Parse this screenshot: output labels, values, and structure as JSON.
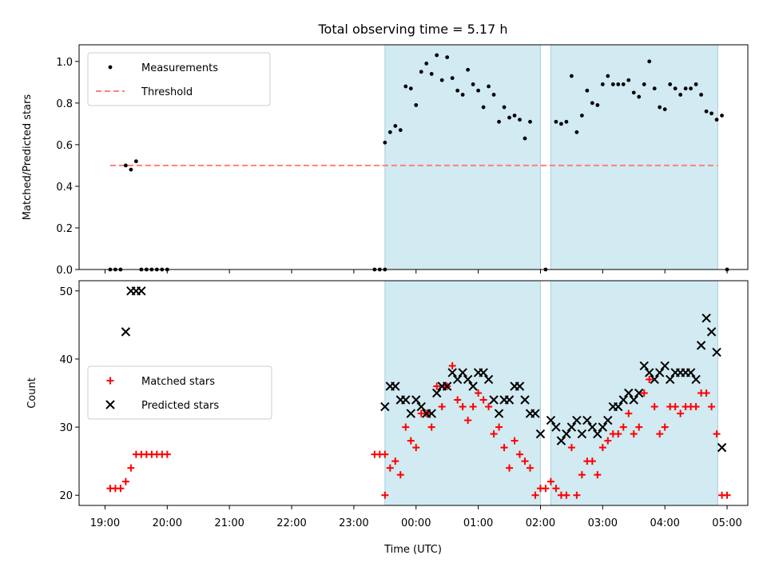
{
  "figure": {
    "title": "Total observing time = 5.17 h",
    "xlabel": "Time (UTC)"
  },
  "colors": {
    "shade": "#add8e6",
    "measurement": "#000000",
    "threshold": "#ff7f7f",
    "matched": "#ff0000",
    "predicted": "#000000"
  },
  "chart_data": [
    {
      "type": "scatter",
      "title": "Total observing time = 5.17 h",
      "ylabel": "Matched/Predicted stars",
      "xlabel": "",
      "xlim": [
        "18:35",
        "05:20"
      ],
      "ylim": [
        0,
        1.08
      ],
      "yticks": [
        "0.0",
        "0.2",
        "0.4",
        "0.6",
        "0.8",
        "1.0"
      ],
      "legend_position": "upper-left",
      "legend": [
        "Measurements",
        "Threshold"
      ],
      "shaded_intervals": [
        [
          "23:30",
          "02:00"
        ],
        [
          "02:10",
          "04:51"
        ]
      ],
      "threshold": {
        "name": "Threshold",
        "value": 0.5,
        "x_range": [
          "19:05",
          "04:51"
        ]
      },
      "series": [
        {
          "name": "Measurements",
          "points": [
            [
              "19:05",
              0
            ],
            [
              "19:10",
              0
            ],
            [
              "19:15",
              0
            ],
            [
              "19:20",
              0.5
            ],
            [
              "19:25",
              0.48
            ],
            [
              "19:30",
              0.52
            ],
            [
              "19:35",
              0
            ],
            [
              "19:40",
              0
            ],
            [
              "19:45",
              0
            ],
            [
              "19:50",
              0
            ],
            [
              "19:55",
              0
            ],
            [
              "20:00",
              0
            ],
            [
              "23:20",
              0
            ],
            [
              "23:25",
              0
            ],
            [
              "23:30",
              0
            ],
            [
              "23:30",
              0.61
            ],
            [
              "23:35",
              0.66
            ],
            [
              "23:40",
              0.69
            ],
            [
              "23:45",
              0.67
            ],
            [
              "23:50",
              0.88
            ],
            [
              "23:55",
              0.87
            ],
            [
              "00:00",
              0.79
            ],
            [
              "00:05",
              0.95
            ],
            [
              "00:10",
              0.99
            ],
            [
              "00:15",
              0.94
            ],
            [
              "00:20",
              1.03
            ],
            [
              "00:25",
              0.91
            ],
            [
              "00:30",
              1.02
            ],
            [
              "00:35",
              0.92
            ],
            [
              "00:40",
              0.86
            ],
            [
              "00:45",
              0.84
            ],
            [
              "00:50",
              0.96
            ],
            [
              "00:55",
              0.89
            ],
            [
              "01:00",
              0.86
            ],
            [
              "01:05",
              0.78
            ],
            [
              "01:10",
              0.88
            ],
            [
              "01:15",
              0.84
            ],
            [
              "01:20",
              0.71
            ],
            [
              "01:25",
              0.78
            ],
            [
              "01:30",
              0.73
            ],
            [
              "01:35",
              0.74
            ],
            [
              "01:40",
              0.72
            ],
            [
              "01:45",
              0.63
            ],
            [
              "01:50",
              0.71
            ],
            [
              "02:05",
              0.0
            ],
            [
              "02:15",
              0.71
            ],
            [
              "02:20",
              0.7
            ],
            [
              "02:25",
              0.71
            ],
            [
              "02:30",
              0.93
            ],
            [
              "02:35",
              0.66
            ],
            [
              "02:40",
              0.74
            ],
            [
              "02:45",
              0.86
            ],
            [
              "02:50",
              0.8
            ],
            [
              "02:55",
              0.79
            ],
            [
              "03:00",
              0.89
            ],
            [
              "03:05",
              0.93
            ],
            [
              "03:10",
              0.89
            ],
            [
              "03:15",
              0.89
            ],
            [
              "03:20",
              0.89
            ],
            [
              "03:25",
              0.91
            ],
            [
              "03:30",
              0.85
            ],
            [
              "03:35",
              0.83
            ],
            [
              "03:40",
              0.89
            ],
            [
              "03:45",
              1.0
            ],
            [
              "03:50",
              0.87
            ],
            [
              "03:55",
              0.78
            ],
            [
              "04:00",
              0.77
            ],
            [
              "04:05",
              0.89
            ],
            [
              "04:10",
              0.87
            ],
            [
              "04:15",
              0.84
            ],
            [
              "04:20",
              0.87
            ],
            [
              "04:25",
              0.87
            ],
            [
              "04:30",
              0.89
            ],
            [
              "04:35",
              0.84
            ],
            [
              "04:40",
              0.76
            ],
            [
              "04:45",
              0.75
            ],
            [
              "04:50",
              0.72
            ],
            [
              "04:55",
              0.74
            ],
            [
              "05:00",
              0.0
            ]
          ]
        }
      ]
    },
    {
      "type": "scatter",
      "title": "",
      "ylabel": "Count",
      "xlabel": "Time (UTC)",
      "xlim": [
        "18:35",
        "05:20"
      ],
      "ylim": [
        18.5,
        51.5
      ],
      "yticks": [
        "20",
        "30",
        "40",
        "50"
      ],
      "xticks": [
        "19:00",
        "20:00",
        "21:00",
        "22:00",
        "23:00",
        "00:00",
        "01:00",
        "02:00",
        "03:00",
        "04:00",
        "05:00"
      ],
      "legend_position": "center-left",
      "legend": [
        "Matched stars",
        "Predicted stars"
      ],
      "shaded_intervals": [
        [
          "23:30",
          "02:00"
        ],
        [
          "02:10",
          "04:51"
        ]
      ],
      "series": [
        {
          "name": "Matched stars",
          "marker": "+",
          "points": [
            [
              "19:05",
              21
            ],
            [
              "19:10",
              21
            ],
            [
              "19:15",
              21
            ],
            [
              "19:20",
              22
            ],
            [
              "19:25",
              24
            ],
            [
              "19:30",
              26
            ],
            [
              "19:35",
              26
            ],
            [
              "19:40",
              26
            ],
            [
              "19:45",
              26
            ],
            [
              "19:50",
              26
            ],
            [
              "19:55",
              26
            ],
            [
              "20:00",
              26
            ],
            [
              "23:20",
              26
            ],
            [
              "23:25",
              26
            ],
            [
              "23:30",
              26
            ],
            [
              "23:30",
              20
            ],
            [
              "23:35",
              24
            ],
            [
              "23:40",
              25
            ],
            [
              "23:45",
              23
            ],
            [
              "23:50",
              30
            ],
            [
              "23:55",
              28
            ],
            [
              "00:00",
              27
            ],
            [
              "00:05",
              32
            ],
            [
              "00:10",
              32
            ],
            [
              "00:15",
              30
            ],
            [
              "00:20",
              36
            ],
            [
              "00:25",
              33
            ],
            [
              "00:30",
              36
            ],
            [
              "00:35",
              39
            ],
            [
              "00:40",
              34
            ],
            [
              "00:45",
              33
            ],
            [
              "00:50",
              31
            ],
            [
              "00:55",
              33
            ],
            [
              "01:00",
              35
            ],
            [
              "01:05",
              34
            ],
            [
              "01:10",
              33
            ],
            [
              "01:15",
              29
            ],
            [
              "01:20",
              30
            ],
            [
              "01:25",
              27
            ],
            [
              "01:30",
              24
            ],
            [
              "01:35",
              28
            ],
            [
              "01:40",
              26
            ],
            [
              "01:45",
              25
            ],
            [
              "01:50",
              24
            ],
            [
              "01:55",
              20
            ],
            [
              "02:00",
              21
            ],
            [
              "02:05",
              21
            ],
            [
              "02:10",
              22
            ],
            [
              "02:15",
              21
            ],
            [
              "02:20",
              20
            ],
            [
              "02:25",
              20
            ],
            [
              "02:30",
              27
            ],
            [
              "02:35",
              20
            ],
            [
              "02:40",
              23
            ],
            [
              "02:45",
              25
            ],
            [
              "02:50",
              25
            ],
            [
              "02:55",
              23
            ],
            [
              "03:00",
              27
            ],
            [
              "03:05",
              28
            ],
            [
              "03:10",
              29
            ],
            [
              "03:15",
              29
            ],
            [
              "03:20",
              30
            ],
            [
              "03:25",
              32
            ],
            [
              "03:30",
              29
            ],
            [
              "03:35",
              30
            ],
            [
              "03:40",
              35
            ],
            [
              "03:45",
              37
            ],
            [
              "03:50",
              33
            ],
            [
              "03:55",
              29
            ],
            [
              "04:00",
              30
            ],
            [
              "04:05",
              33
            ],
            [
              "04:10",
              33
            ],
            [
              "04:15",
              32
            ],
            [
              "04:20",
              33
            ],
            [
              "04:25",
              33
            ],
            [
              "04:30",
              33
            ],
            [
              "04:35",
              35
            ],
            [
              "04:40",
              35
            ],
            [
              "04:45",
              33
            ],
            [
              "04:50",
              29
            ],
            [
              "04:55",
              20
            ],
            [
              "05:00",
              20
            ]
          ]
        },
        {
          "name": "Predicted stars",
          "marker": "x",
          "points": [
            [
              "19:25",
              50
            ],
            [
              "19:30",
              50
            ],
            [
              "19:35",
              50
            ],
            [
              "19:20",
              44
            ],
            [
              "23:30",
              33
            ],
            [
              "23:35",
              36
            ],
            [
              "23:40",
              36
            ],
            [
              "23:45",
              34
            ],
            [
              "23:50",
              34
            ],
            [
              "23:55",
              32
            ],
            [
              "00:00",
              34
            ],
            [
              "00:05",
              33
            ],
            [
              "00:10",
              32
            ],
            [
              "00:15",
              32
            ],
            [
              "00:20",
              35
            ],
            [
              "00:25",
              36
            ],
            [
              "00:30",
              36
            ],
            [
              "00:35",
              38
            ],
            [
              "00:40",
              37
            ],
            [
              "00:45",
              38
            ],
            [
              "00:50",
              37
            ],
            [
              "00:55",
              36
            ],
            [
              "01:00",
              38
            ],
            [
              "01:05",
              38
            ],
            [
              "01:10",
              37
            ],
            [
              "01:15",
              34
            ],
            [
              "01:20",
              32
            ],
            [
              "01:25",
              34
            ],
            [
              "01:30",
              34
            ],
            [
              "01:35",
              36
            ],
            [
              "01:40",
              36
            ],
            [
              "01:45",
              34
            ],
            [
              "01:50",
              32
            ],
            [
              "01:55",
              32
            ],
            [
              "02:00",
              29
            ],
            [
              "02:10",
              31
            ],
            [
              "02:15",
              30
            ],
            [
              "02:20",
              28
            ],
            [
              "02:25",
              29
            ],
            [
              "02:30",
              30
            ],
            [
              "02:35",
              31
            ],
            [
              "02:40",
              29
            ],
            [
              "02:45",
              31
            ],
            [
              "02:50",
              30
            ],
            [
              "02:55",
              29
            ],
            [
              "03:00",
              30
            ],
            [
              "03:05",
              31
            ],
            [
              "03:10",
              33
            ],
            [
              "03:15",
              33
            ],
            [
              "03:20",
              34
            ],
            [
              "03:25",
              35
            ],
            [
              "03:30",
              34
            ],
            [
              "03:35",
              35
            ],
            [
              "03:40",
              39
            ],
            [
              "03:45",
              38
            ],
            [
              "03:50",
              37
            ],
            [
              "03:55",
              38
            ],
            [
              "04:00",
              39
            ],
            [
              "04:05",
              37
            ],
            [
              "04:10",
              38
            ],
            [
              "04:15",
              38
            ],
            [
              "04:20",
              38
            ],
            [
              "04:25",
              38
            ],
            [
              "04:30",
              37
            ],
            [
              "04:35",
              42
            ],
            [
              "04:40",
              46
            ],
            [
              "04:45",
              44
            ],
            [
              "04:50",
              41
            ],
            [
              "04:55",
              27
            ]
          ]
        }
      ]
    }
  ]
}
